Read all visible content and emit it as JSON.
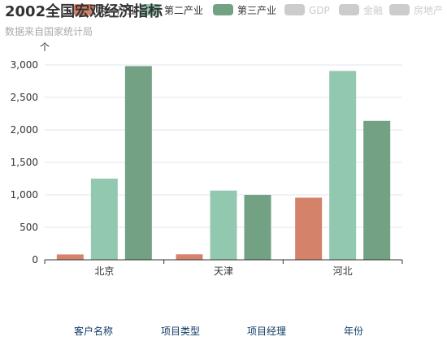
{
  "chart_data": {
    "type": "bar",
    "title": "2002全国宏观经济指标",
    "subtitle": "数据来自国家统计局",
    "ylabel": "个",
    "categories": [
      "北京",
      "天津",
      "河北"
    ],
    "series": [
      {
        "name": "第一产业",
        "color": "#d4826a",
        "values": [
          82.4,
          84.0,
          956.8
        ]
      },
      {
        "name": "第二产业",
        "color": "#93c8b0",
        "values": [
          1249.9,
          1066.1,
          2908.0
        ]
      },
      {
        "name": "第三产业",
        "color": "#73a183",
        "values": [
          2982.6,
          999.9,
          2140.0
        ]
      }
    ],
    "legend": {
      "placement": "top-right",
      "items": [
        {
          "name": "第一产业",
          "color": "#d4826a",
          "active": true
        },
        {
          "name": "第二产业",
          "color": "#93c8b0",
          "active": true
        },
        {
          "name": "第三产业",
          "color": "#73a183",
          "active": true
        },
        {
          "name": "GDP",
          "color": "#cccccc",
          "active": false
        },
        {
          "name": "金融",
          "color": "#cccccc",
          "active": false
        },
        {
          "name": "房地产",
          "color": "#cccccc",
          "active": false
        }
      ]
    },
    "ylim": [
      0,
      3000
    ],
    "yticks": [
      0,
      500,
      1000,
      1500,
      2000,
      2500,
      3000
    ],
    "ytick_labels": [
      "0",
      "500",
      "1,000",
      "1,500",
      "2,000",
      "2,500",
      "3,000"
    ],
    "grid": true
  },
  "footer": {
    "labels": [
      "客户名称",
      "项目类型",
      "项目经理",
      "年份"
    ]
  }
}
